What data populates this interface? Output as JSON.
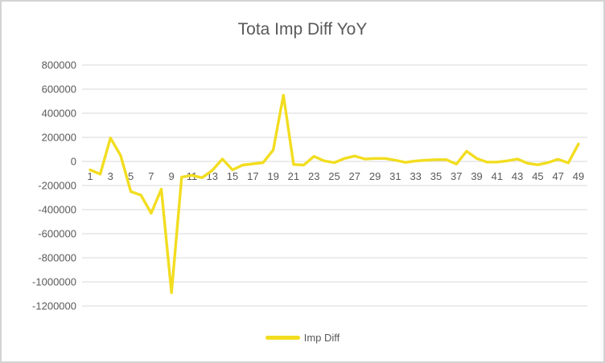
{
  "chart": {
    "background": "#FFFFFF",
    "border_color": "#D3D3D3"
  },
  "chart_data": {
    "type": "line",
    "title": "Tota Imp Diff YoY",
    "xlabel": "",
    "ylabel": "",
    "categories": [
      1,
      2,
      3,
      4,
      5,
      6,
      7,
      8,
      9,
      10,
      11,
      12,
      13,
      14,
      15,
      16,
      17,
      18,
      19,
      20,
      21,
      22,
      23,
      24,
      25,
      26,
      27,
      28,
      29,
      30,
      31,
      32,
      33,
      34,
      35,
      36,
      37,
      38,
      39,
      40,
      41,
      42,
      43,
      44,
      45,
      46,
      47,
      48,
      49
    ],
    "series": [
      {
        "name": "Imp Diff",
        "color": "#F2DD20",
        "values": [
          -70000,
          -105000,
          195000,
          50000,
          -250000,
          -280000,
          -430000,
          -230000,
          -1090000,
          -130000,
          -115000,
          -135000,
          -75000,
          20000,
          -70000,
          -30000,
          -20000,
          -10000,
          95000,
          550000,
          -25000,
          -30000,
          42000,
          5000,
          -10000,
          25000,
          45000,
          20000,
          25000,
          25000,
          10000,
          -8000,
          4000,
          10000,
          15000,
          15000,
          -22000,
          85000,
          25000,
          -5000,
          -5000,
          5000,
          20000,
          -15000,
          -28000,
          -10000,
          18000,
          -12000,
          145000
        ]
      }
    ],
    "ylim": [
      -1200000,
      800000
    ],
    "ytick_interval": 200000,
    "ytick_labels": [
      "800000",
      "600000",
      "400000",
      "200000",
      "0",
      "-200000",
      "-400000",
      "-600000",
      "-800000",
      "-1000000",
      "-1200000"
    ],
    "xtick_labels": [
      "1",
      "3",
      "5",
      "7",
      "9",
      "11",
      "13",
      "15",
      "17",
      "19",
      "21",
      "23",
      "25",
      "27",
      "29",
      "31",
      "33",
      "35",
      "37",
      "39",
      "41",
      "43",
      "45",
      "47",
      "49"
    ],
    "grid": true,
    "gridline_color": "#D9D9D9",
    "text_color": "#595959",
    "legend_position": "bottom",
    "legend_labels": [
      "Imp Diff"
    ]
  }
}
